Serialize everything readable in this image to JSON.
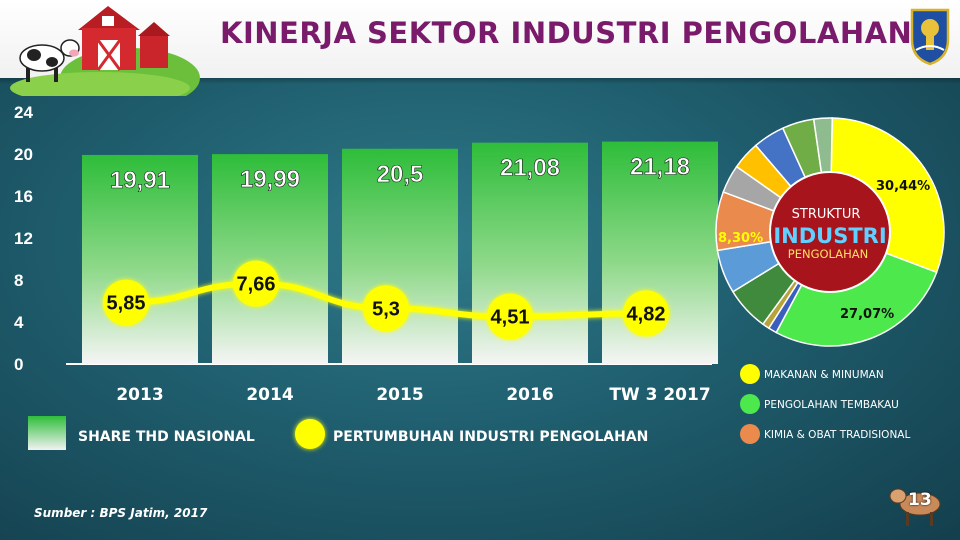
{
  "title": "KINERJA SEKTOR INDUSTRI PENGOLAHAN",
  "chart_data": [
    {
      "type": "bar",
      "categories": [
        "2013",
        "2014",
        "2015",
        "2016",
        "TW 3 2017"
      ],
      "series": [
        {
          "name": "SHARE THD NASIONAL",
          "type": "bar",
          "values": [
            19.91,
            19.99,
            20.5,
            21.08,
            21.18
          ],
          "labels": [
            "19,91",
            "19,99",
            "20,5",
            "21,08",
            "21,18"
          ]
        },
        {
          "name": "PERTUMBUHAN INDUSTRI PENGOLAHAN",
          "type": "line",
          "values": [
            5.85,
            7.66,
            5.3,
            4.51,
            4.82
          ],
          "labels": [
            "5,85",
            "7,66",
            "5,3",
            "4,51",
            "4,82"
          ]
        }
      ],
      "yticks": [
        "0",
        "4",
        "8",
        "12",
        "16",
        "20",
        "24"
      ],
      "ylim": [
        0,
        24
      ],
      "grid": false,
      "legend_placement": "bottom",
      "colors": {
        "bar_top": "#2ebd3a",
        "bar_bottom": "#f3f3f3",
        "line": "#ffff00"
      }
    },
    {
      "type": "pie",
      "center_label": [
        "STRUKTUR",
        "INDUSTRI",
        "PENGOLAHAN"
      ],
      "slices": [
        {
          "name": "MAKANAN & MINUMAN",
          "value": 30.44,
          "label": "30,44%",
          "color": "#ffff00"
        },
        {
          "name": "PENGOLAHAN TEMBAKAU",
          "value": 27.07,
          "label": "27,07%",
          "color": "#4ce84c"
        },
        {
          "name": "",
          "value": 1.2,
          "color": "#3a5fbf"
        },
        {
          "name": "",
          "value": 1.0,
          "color": "#b8a23a"
        },
        {
          "name": "",
          "value": 6.2,
          "color": "#3f8a3c"
        },
        {
          "name": "",
          "value": 6.2,
          "color": "#5a9bd8"
        },
        {
          "name": "KIMIA & OBAT TRADISIONAL",
          "value": 8.3,
          "label": "8,30%",
          "color": "#ea8a4c"
        },
        {
          "name": "",
          "value": 4.0,
          "color": "#a6a6a6"
        },
        {
          "name": "",
          "value": 4.0,
          "color": "#ffc000"
        },
        {
          "name": "",
          "value": 4.5,
          "color": "#4472c4"
        },
        {
          "name": "",
          "value": 4.5,
          "color": "#70ad47"
        },
        {
          "name": "",
          "value": 2.6,
          "color": "#8fbc8f"
        }
      ]
    }
  ],
  "source": "Sumber : BPS Jatim, 2017",
  "page_number": "13",
  "icons": [
    "barn-farm-icon",
    "cow-icon",
    "east-java-crest-icon",
    "calf-icon"
  ]
}
